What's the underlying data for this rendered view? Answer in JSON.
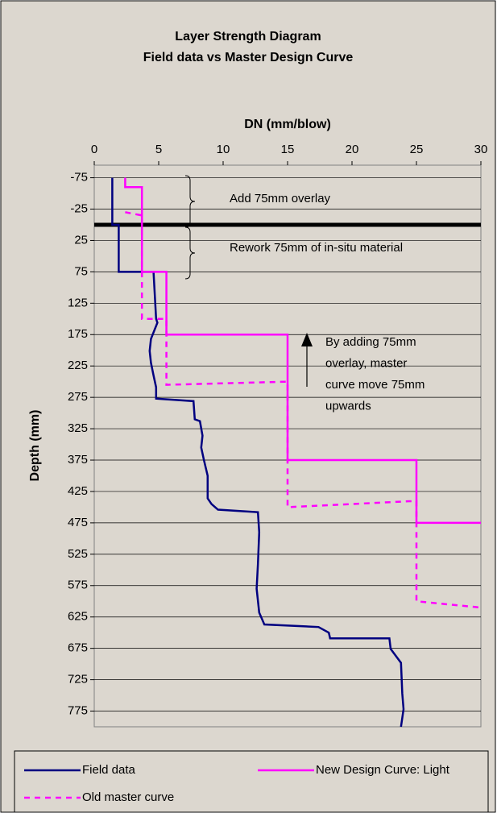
{
  "chart_data": {
    "type": "line",
    "title": [
      "Layer Strength Diagram",
      "Field data vs Master Design Curve"
    ],
    "x_label": "DN (mm/blow)",
    "y_label": "Depth (mm)",
    "xlim": [
      0,
      30
    ],
    "xticks": [
      0,
      5,
      10,
      15,
      20,
      25,
      30
    ],
    "ylim": [
      -95,
      800
    ],
    "y_inverted": true,
    "yticks": [
      -75,
      -25,
      25,
      75,
      125,
      175,
      225,
      275,
      325,
      375,
      425,
      475,
      525,
      575,
      625,
      675,
      725,
      775
    ],
    "grid": true,
    "hline": 0,
    "series": [
      {
        "name": "Field data",
        "color": "#000080",
        "style": "solid",
        "x": [
          1.4,
          1.4,
          1.9,
          1.9,
          4.6,
          4.8,
          4.9,
          4.4,
          4.3,
          4.4,
          4.6,
          4.8,
          4.8,
          7.7,
          7.8,
          8.2,
          8.4,
          8.3,
          8.5,
          8.8,
          8.8,
          9.1,
          9.6,
          12.7,
          12.8,
          12.7,
          12.6,
          12.8,
          13.2,
          17.4,
          18.2,
          18.3,
          22.9,
          23.0,
          23.8,
          23.9,
          24.0,
          23.8
        ],
        "y": [
          -75,
          0,
          0,
          75,
          75,
          150,
          156,
          182,
          201,
          220,
          240,
          259,
          277,
          281,
          310,
          313,
          336,
          355,
          374,
          400,
          436,
          445,
          454,
          458,
          490,
          541,
          580,
          618,
          637,
          641,
          650,
          659,
          659,
          676,
          698,
          747,
          772,
          800
        ]
      },
      {
        "name": "New Design Curve: Light",
        "color": "#ff00ff",
        "style": "solid",
        "x": [
          2.4,
          2.4,
          3.7,
          3.7,
          5.6,
          5.6,
          15,
          15,
          25,
          25,
          30
        ],
        "y": [
          -75,
          -60,
          -60,
          75,
          75,
          175,
          175,
          375,
          375,
          475,
          475
        ]
      },
      {
        "name": "Old master curve",
        "color": "#ff00ff",
        "style": "dashed",
        "x": [
          2.4,
          3.7,
          3.7,
          5.6,
          5.6,
          15,
          15,
          25,
          25,
          30
        ],
        "y": [
          -20,
          -15,
          150,
          150,
          255,
          250,
          450,
          440,
          600,
          610
        ]
      }
    ],
    "annotations": [
      {
        "lines": [
          "Add 75mm overlay"
        ]
      },
      {
        "lines": [
          "Rework 75mm of  in-situ material"
        ]
      },
      {
        "lines": [
          "By adding 75mm",
          "overlay, master",
          "curve move 75mm",
          "upwards"
        ]
      }
    ]
  }
}
